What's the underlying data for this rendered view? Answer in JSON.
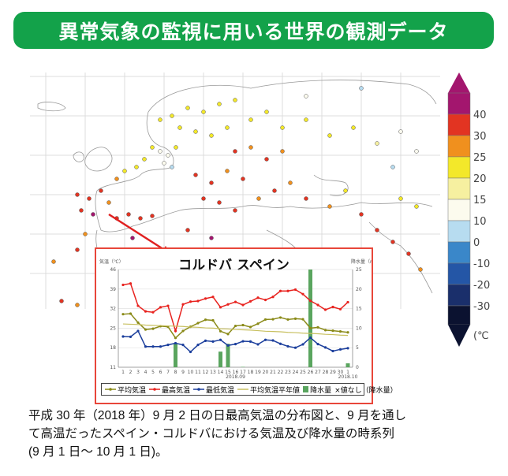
{
  "header": {
    "title": "異常気象の監視に用いる世界の観測データ"
  },
  "map": {
    "description": "2018-09-02 daily maximum temperature distribution, Europe / Middle East",
    "arrow_color": "#e02020"
  },
  "colorbar": {
    "unit": "(℃",
    "labels": [
      "40",
      "30",
      "25",
      "20",
      "15",
      "10",
      "0",
      "-10",
      "-20",
      "-30"
    ],
    "colors": [
      "#a3166e",
      "#e23422",
      "#f0901e",
      "#f3e82a",
      "#f6f0a0",
      "#fcfbee",
      "#b7dcf0",
      "#3a87c9",
      "#2456a6",
      "#1a2f6b",
      "#0b1230"
    ]
  },
  "inset": {
    "title": "コルドバ スペイン",
    "left_axis_label": "気温（℃）",
    "right_axis_label": "降水量（mm）",
    "x_month_label_sep": "2018.09",
    "x_month_label_oct": "2018.10",
    "legend": {
      "avg": "平均気温",
      "max": "最高気温",
      "min": "最低気温",
      "normal": "平均気温平年値",
      "precip": "降水量",
      "missing": "×値なし（降水量）"
    }
  },
  "chart_data": {
    "type": "line",
    "title": "コルドバ スペイン",
    "xlabel": "2018.09 – 2018.10",
    "ylabel": "気温（℃）",
    "y2label": "降水量（mm）",
    "ylim": [
      11,
      46
    ],
    "y2lim": [
      0,
      25
    ],
    "yticks": [
      11,
      18,
      25,
      32,
      39,
      46
    ],
    "y2ticks": [
      0,
      5,
      10,
      15,
      20,
      25
    ],
    "grid": true,
    "legend_position": "bottom",
    "categories": [
      "1",
      "2",
      "3",
      "4",
      "5",
      "6",
      "7",
      "8",
      "9",
      "10",
      "11",
      "12",
      "13",
      "14",
      "15",
      "16",
      "17",
      "18",
      "19",
      "20",
      "21",
      "22",
      "23",
      "24",
      "25",
      "26",
      "27",
      "28",
      "29",
      "30",
      "1"
    ],
    "series": [
      {
        "name": "最高気温",
        "color": "#e8231f",
        "values": [
          40.5,
          41,
          33,
          31,
          30.7,
          32.5,
          33,
          24,
          33.5,
          34.5,
          34.7,
          35.6,
          36.2,
          32.5,
          33.5,
          34.4,
          33.3,
          34.6,
          35.9,
          35.1,
          36.2,
          38.3,
          38.3,
          38.8,
          37.2,
          34.8,
          33.3,
          31.6,
          32.6,
          31.8,
          34.3
        ]
      },
      {
        "name": "平均気温",
        "color": "#8a8a18",
        "values": [
          30,
          30.2,
          27,
          24.5,
          24.8,
          25.7,
          25.5,
          21.5,
          24,
          25.5,
          26.8,
          28,
          27.8,
          23.9,
          22.9,
          25.8,
          26.1,
          25.4,
          26.6,
          28.1,
          28.2,
          28.8,
          28.1,
          28.4,
          28.2,
          25,
          25.3,
          24.3,
          24.1,
          23.8,
          23.5
        ]
      },
      {
        "name": "最低気温",
        "color": "#1b3e9c",
        "values": [
          22,
          21.9,
          24,
          18.4,
          18.4,
          18.4,
          19,
          19.6,
          19,
          16.5,
          19,
          20.5,
          20.2,
          20.8,
          18.8,
          19.3,
          20.3,
          20.2,
          19.2,
          20.8,
          20.6,
          19.4,
          18.5,
          18,
          19.2,
          21.6,
          19.3,
          18.1,
          16.8,
          17.4,
          17.8
        ]
      },
      {
        "name": "平均気温平年値",
        "color": "#c8c060",
        "values": [
          26.5,
          26.4,
          26.3,
          26.1,
          26,
          25.9,
          25.8,
          25.7,
          25.6,
          25.4,
          25.3,
          25.1,
          25,
          24.8,
          24.7,
          24.5,
          24.4,
          24.3,
          24.1,
          23.9,
          23.8,
          23.7,
          23.5,
          23.4,
          23.2,
          23.1,
          23,
          22.8,
          22.7,
          22.5,
          22.4
        ]
      },
      {
        "name": "降水量",
        "type": "bar",
        "color": "#5aa55f",
        "values": [
          0,
          0,
          0,
          0,
          0,
          0,
          0,
          6,
          0,
          0,
          0,
          0,
          0,
          4,
          6,
          0,
          0.1,
          0,
          0,
          0,
          0,
          0,
          0,
          0,
          0,
          25,
          0,
          0,
          0,
          0,
          1
        ]
      }
    ]
  },
  "caption": {
    "lines": [
      "平成 30 年（2018 年）9 月 2 日の日最高気温の分布図と、9 月を通し",
      "て高温だったスペイン・コルドバにおける気温及び降水量の時系列",
      "(9 月 1 日～ 10 月 1 日)。"
    ]
  }
}
